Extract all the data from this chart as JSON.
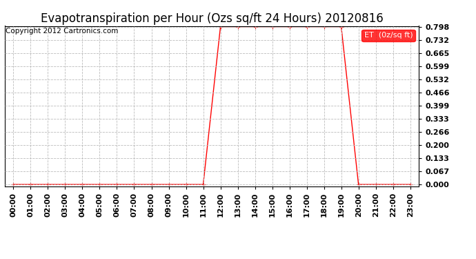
{
  "title": "Evapotranspiration per Hour (Ozs sq/ft 24 Hours) 20120816",
  "copyright": "Copyright 2012 Cartronics.com",
  "legend_label": "ET  (0z/sq ft)",
  "line_color": "#ff0000",
  "background_color": "#ffffff",
  "grid_color": "#bbbbbb",
  "hours": [
    0,
    1,
    2,
    3,
    4,
    5,
    6,
    7,
    8,
    9,
    10,
    11,
    12,
    13,
    14,
    15,
    16,
    17,
    18,
    19,
    20,
    21,
    22,
    23
  ],
  "et_values": [
    0.0,
    0.0,
    0.0,
    0.0,
    0.0,
    0.0,
    0.0,
    0.0,
    0.0,
    0.0,
    0.0,
    0.0,
    0.798,
    0.798,
    0.798,
    0.798,
    0.798,
    0.798,
    0.798,
    0.798,
    0.0,
    0.0,
    0.0,
    0.0
  ],
  "yticks": [
    0.0,
    0.067,
    0.133,
    0.2,
    0.266,
    0.333,
    0.399,
    0.466,
    0.532,
    0.599,
    0.665,
    0.732,
    0.798
  ],
  "ylim": [
    0.0,
    0.798
  ],
  "xtick_labels": [
    "00:00",
    "01:00",
    "02:00",
    "03:00",
    "04:00",
    "05:00",
    "06:00",
    "07:00",
    "08:00",
    "09:00",
    "10:00",
    "11:00",
    "12:00",
    "13:00",
    "14:00",
    "15:00",
    "16:00",
    "17:00",
    "18:00",
    "19:00",
    "20:00",
    "21:00",
    "22:00",
    "23:00"
  ],
  "title_fontsize": 12,
  "copyright_fontsize": 7.5,
  "tick_fontsize": 8,
  "legend_fontsize": 8
}
